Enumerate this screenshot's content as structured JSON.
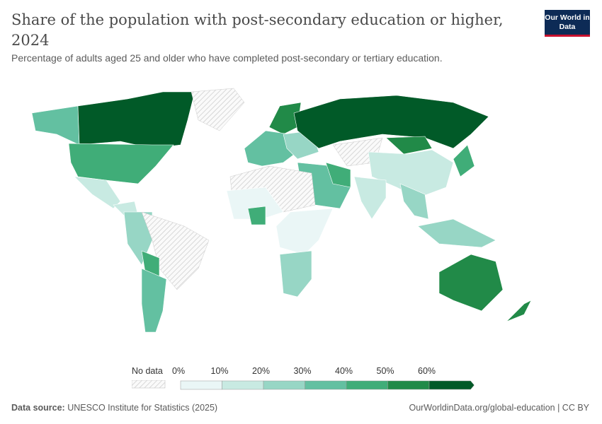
{
  "header": {
    "title": "Share of the population with post-secondary education or higher, 2024",
    "subtitle": "Percentage of adults aged 25 and older who have completed post-secondary or tertiary education.",
    "logo_text": "Our World in Data"
  },
  "legend": {
    "no_data_label": "No data",
    "ticks": [
      "0%",
      "10%",
      "20%",
      "30%",
      "40%",
      "50%",
      "60%"
    ],
    "bin_colors": [
      "#eaf6f6",
      "#c8eae2",
      "#97d6c5",
      "#63c0a1",
      "#40ad78",
      "#218a48",
      "#015a28"
    ],
    "no_data_color": "#e6e6e6"
  },
  "footer": {
    "source_label": "Data source:",
    "source_text": "UNESCO Institute for Statistics (2025)",
    "url": "OurWorldinData.org/global-education | CC BY"
  }
}
